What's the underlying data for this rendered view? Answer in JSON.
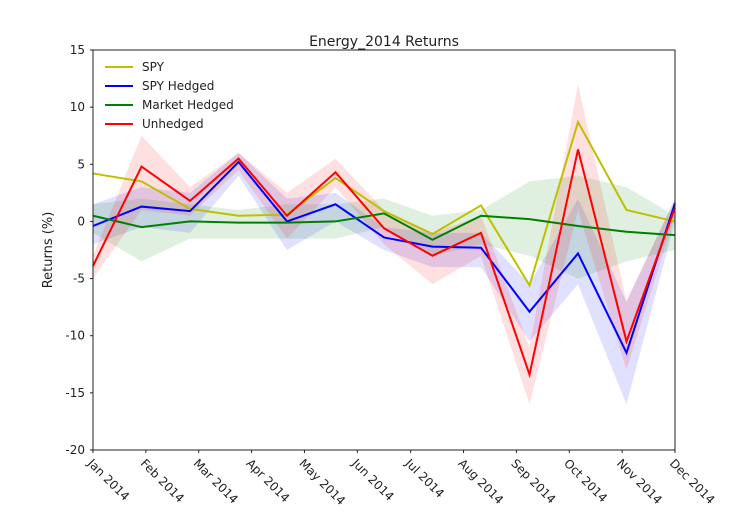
{
  "chart_data": {
    "type": "line",
    "title": "Energy_2014 Returns",
    "y_label": "Returns (%)",
    "x": [
      0,
      1,
      2,
      3,
      4,
      5,
      6,
      7,
      8,
      9,
      10,
      11,
      12
    ],
    "xlim": [
      0,
      12
    ],
    "xticks": [
      {
        "value": 0,
        "label": "Jan 2014"
      },
      {
        "value": 1.09,
        "label": "Feb 2014"
      },
      {
        "value": 2.18,
        "label": "Mar 2014"
      },
      {
        "value": 3.27,
        "label": "Apr 2014"
      },
      {
        "value": 4.36,
        "label": "May 2014"
      },
      {
        "value": 5.45,
        "label": "Jun 2014"
      },
      {
        "value": 6.55,
        "label": "Jul 2014"
      },
      {
        "value": 7.64,
        "label": "Aug 2014"
      },
      {
        "value": 8.73,
        "label": "Sep 2014"
      },
      {
        "value": 9.82,
        "label": "Oct 2014"
      },
      {
        "value": 10.91,
        "label": "Nov 2014"
      },
      {
        "value": 12,
        "label": "Dec 2014"
      }
    ],
    "ylim": [
      -20,
      15
    ],
    "yticks": [
      -20,
      -15,
      -10,
      -5,
      0,
      5,
      10,
      15
    ],
    "grid": false,
    "legend": "upper-left",
    "series": [
      {
        "name": "SPY",
        "color": "#bfbf00",
        "values": [
          4.2,
          3.5,
          1.1,
          0.5,
          0.6,
          3.8,
          0.9,
          -1.1,
          1.4,
          -5.6,
          8.7,
          1.0,
          0.0
        ]
      },
      {
        "name": "SPY Hedged",
        "color": "#0000ff",
        "values": [
          -0.4,
          1.3,
          0.9,
          5.2,
          0,
          1.5,
          -1.4,
          -2.2,
          -2.3,
          -7.9,
          -2.8,
          -11.5,
          1.6
        ],
        "lower": [
          -2,
          -0.5,
          -1,
          4,
          -2.5,
          0,
          -2.5,
          -4,
          -4,
          -10.5,
          -5.5,
          -16,
          0
        ],
        "upper": [
          1.5,
          3,
          2.5,
          6,
          2,
          2.5,
          -0.5,
          -1,
          -1,
          -5.5,
          2,
          -7,
          2
        ]
      },
      {
        "name": "Market Hedged",
        "color": "#008000",
        "values": [
          0.5,
          -0.5,
          0.0,
          -0.1,
          -0.1,
          0.0,
          0.7,
          -1.6,
          0.5,
          0.2,
          -0.4,
          -0.9,
          -1.2
        ],
        "lower": [
          -1,
          -3.5,
          -1.5,
          -1.5,
          -1.5,
          -1.5,
          -0.5,
          -3,
          -2,
          -3,
          -5,
          -3.5,
          -2.5
        ],
        "upper": [
          1.5,
          2,
          1.5,
          1,
          1.5,
          1.5,
          2,
          0.5,
          1,
          3.5,
          4,
          3,
          0.5
        ]
      },
      {
        "name": "Unhedged",
        "color": "#ff0000",
        "values": [
          -3.9,
          4.8,
          1.8,
          5.5,
          0.5,
          4.3,
          -0.6,
          -3.0,
          -1.0,
          -13.4,
          6.3,
          -10.5,
          1.2
        ],
        "lower": [
          -5,
          1,
          0.5,
          4.5,
          -1.5,
          3,
          -2,
          -5.5,
          -3,
          -16,
          1,
          -13,
          0.5
        ],
        "upper": [
          -3,
          7.5,
          3,
          6,
          2.5,
          5.5,
          1,
          -1,
          0.5,
          -11,
          12,
          -7,
          2
        ]
      }
    ]
  }
}
